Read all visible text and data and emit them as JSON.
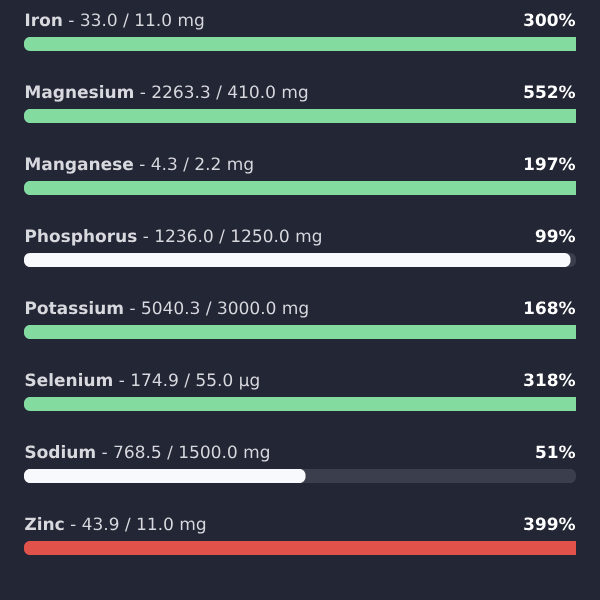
{
  "chart_data": {
    "type": "other",
    "categories": [
      "**Iron** - 33.0 / 11.0 mg",
      "**Magnesium** - 2263.3 / 410.0 mg",
      "**Manganese** - 4.3 / 2.2 mg",
      "**Phosphorus** - 1236.0 / 1250.0 mg",
      "**Potassium** - 5040.3 / 3000.0 mg",
      "**Selenium** - 174.9 / 55.0 µg",
      "**Sodium** - 768.5 / 1500.0 mg",
      "**Zinc** - 43.9 / 11.0 mg"
    ],
    "values": [
      300,
      552,
      197,
      99,
      168,
      318,
      51,
      399
    ],
    "colors": [
      "#84dba0",
      "#84dba0",
      "#84dba0",
      "#f8f9fc",
      "#84dba0",
      "#84dba0",
      "#f8f9fc",
      "#e0524a"
    ],
    "value_labels": [
      "300%",
      "552%",
      "197%",
      "99%",
      "168%",
      "318%",
      "51%",
      "399%"
    ]
  }
}
